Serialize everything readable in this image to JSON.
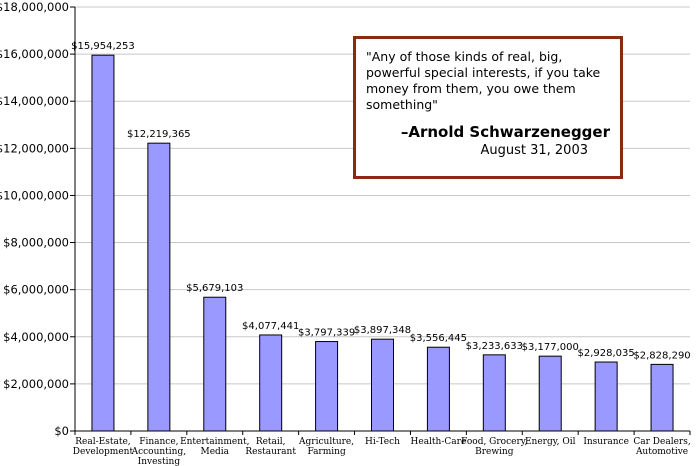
{
  "chart_data": {
    "type": "bar",
    "categories": [
      [
        "Real-Estate,",
        "Development"
      ],
      [
        "Finance,",
        "Accounting,",
        "Investing"
      ],
      [
        "Entertainment,",
        "Media"
      ],
      [
        "Retail,",
        "Restaurant"
      ],
      [
        "Agriculture,",
        "Farming"
      ],
      [
        "Hi-Tech"
      ],
      [
        "Health-Care"
      ],
      [
        "Food, Grocery,",
        "Brewing"
      ],
      [
        "Energy, Oil"
      ],
      [
        "Insurance"
      ],
      [
        "Car Dealers,",
        "Automotive"
      ]
    ],
    "values": [
      15954253,
      12219365,
      5679103,
      4077441,
      3797339,
      3897348,
      3556445,
      3233633,
      3177000,
      2928035,
      2828290
    ],
    "data_labels": [
      "$15,954,253",
      "$12,219,365",
      "$5,679,103",
      "$4,077,441",
      "$3,797,339",
      "$3,897,348",
      "$3,556,445",
      "$3,233,633",
      "$3,177,000",
      "$2,928,035",
      "$2,828,290"
    ],
    "yticks": [
      0,
      2000000,
      4000000,
      6000000,
      8000000,
      10000000,
      12000000,
      14000000,
      16000000,
      18000000
    ],
    "ytick_labels": [
      "$0",
      "$2,000,000",
      "$4,000,000",
      "$6,000,000",
      "$8,000,000",
      "$10,000,000",
      "$12,000,000",
      "$14,000,000",
      "$16,000,000",
      "$18,000,000"
    ],
    "ylim": [
      0,
      18000000
    ],
    "grid": true,
    "bar_color": "#9999ff",
    "bar_border": "#000000",
    "grid_color": "#c8c8c8"
  },
  "quote": {
    "text": "\"Any of those kinds of real, big, powerful special interests, if you take money from them, you owe them something\"",
    "author": "–Arnold Schwarzenegger",
    "date": "August 31, 2003",
    "border_color": "#8b2a12"
  }
}
